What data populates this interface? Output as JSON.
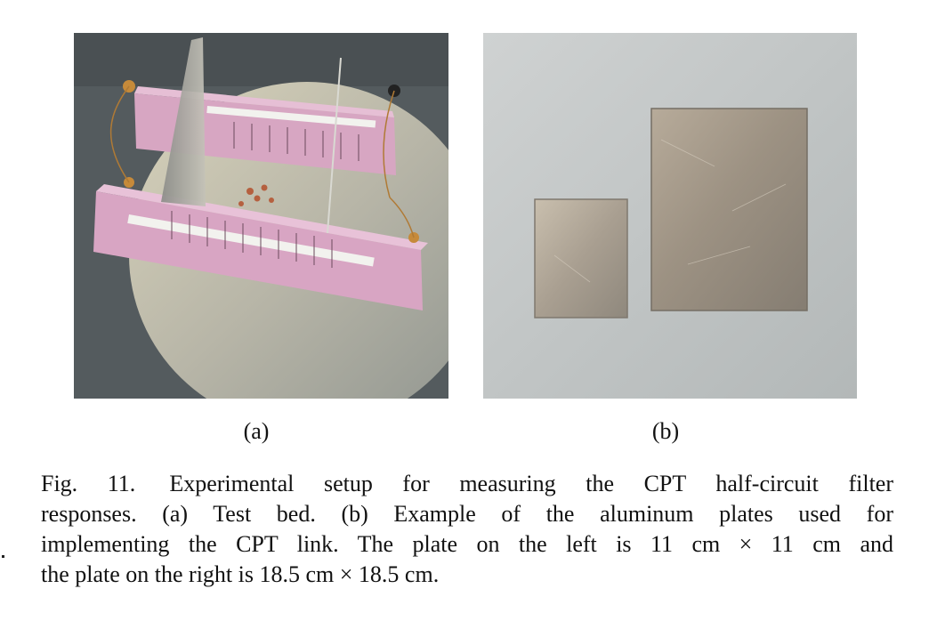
{
  "figure": {
    "label_a": "(a)",
    "label_b": "(b)",
    "caption": {
      "fig_id": "Fig. 11.",
      "line1_rest": "Experimental setup for measuring the CPT half-circuit filter",
      "line2": "responses. (a) Test bed. (b) Example of the aluminum plates used for",
      "line3": "implementing the CPT link. The plate on the left is 11 cm × 11 cm and",
      "line4": "the plate on the right is 18.5 cm × 18.5 cm."
    }
  }
}
